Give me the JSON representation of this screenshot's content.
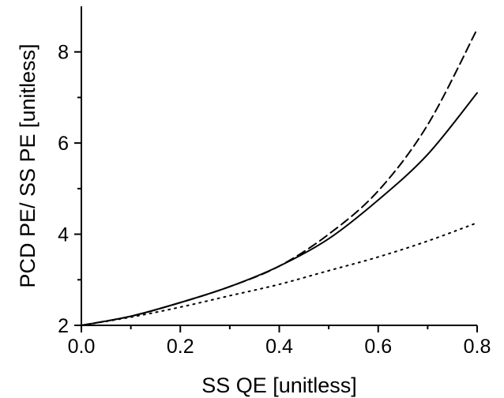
{
  "chart_data": {
    "type": "line",
    "xlabel": "SS QE [unitless]",
    "ylabel": "PCD PE/ SS PE [unitless]",
    "xlim": [
      0.0,
      0.8
    ],
    "ylim": [
      2.0,
      9.0
    ],
    "x_ticks": [
      "0.0",
      "0.2",
      "0.4",
      "0.6",
      "0.8"
    ],
    "y_ticks": [
      "2",
      "4",
      "6",
      "8"
    ],
    "grid": false,
    "legend": "none",
    "series": [
      {
        "style": "solid",
        "x": [
          0.0,
          0.1,
          0.2,
          0.3,
          0.4,
          0.5,
          0.6,
          0.7,
          0.8
        ],
        "y": [
          2.0,
          2.2,
          2.5,
          2.85,
          3.3,
          3.9,
          4.75,
          5.75,
          7.1
        ]
      },
      {
        "style": "dashed",
        "x": [
          0.0,
          0.1,
          0.2,
          0.3,
          0.4,
          0.5,
          0.6,
          0.7,
          0.8
        ],
        "y": [
          2.0,
          2.2,
          2.5,
          2.85,
          3.3,
          4.0,
          4.95,
          6.4,
          8.5
        ]
      },
      {
        "style": "dotted",
        "x": [
          0.0,
          0.1,
          0.2,
          0.3,
          0.4,
          0.5,
          0.6,
          0.7,
          0.8
        ],
        "y": [
          2.0,
          2.18,
          2.4,
          2.65,
          2.9,
          3.2,
          3.5,
          3.85,
          4.25
        ]
      }
    ]
  }
}
